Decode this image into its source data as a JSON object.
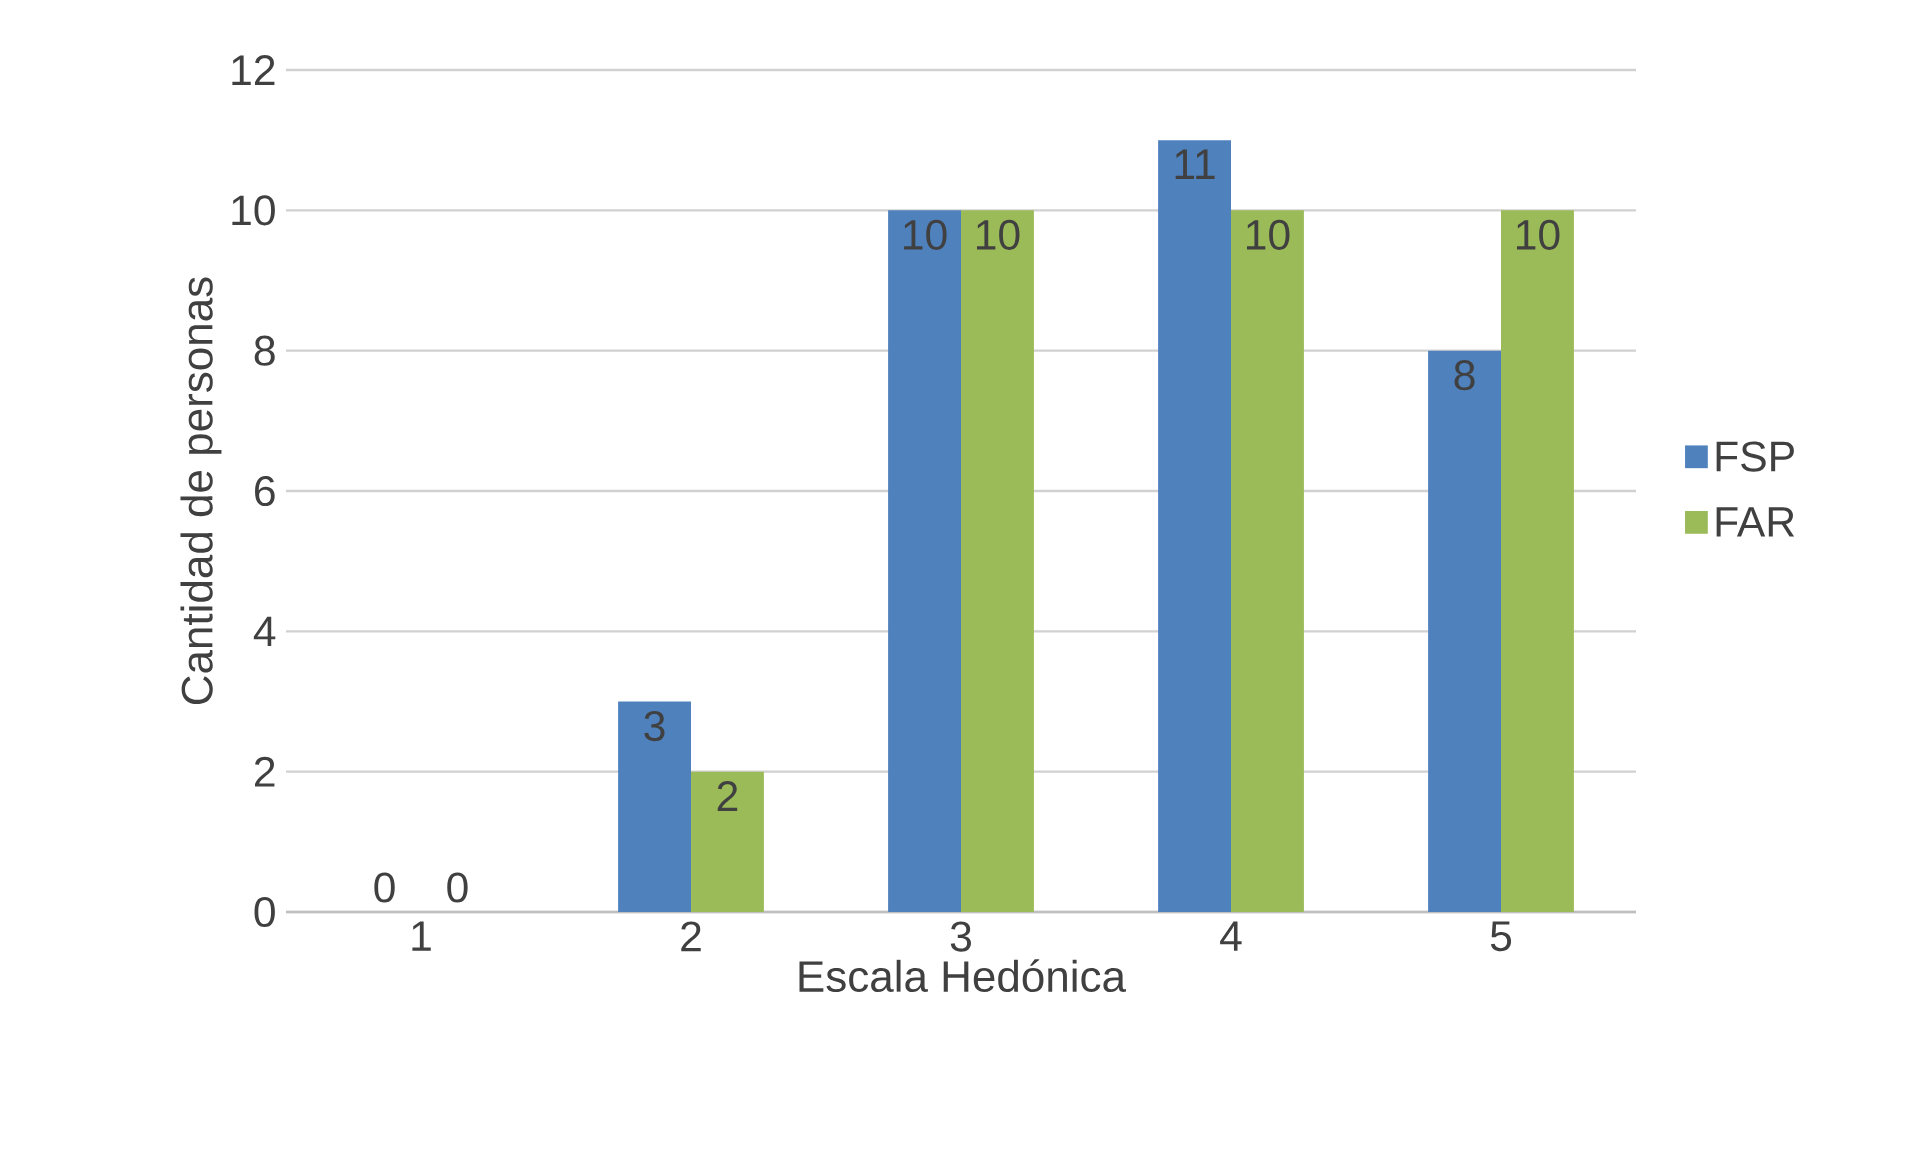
{
  "chart_data": {
    "type": "bar",
    "xlabel": "Escala Hedónica",
    "ylabel": "Cantidad de personas",
    "categories": [
      "1",
      "2",
      "3",
      "4",
      "5"
    ],
    "series": [
      {
        "name": "FSP",
        "color": "#4f81bd",
        "values": [
          0,
          3,
          10,
          11,
          8
        ]
      },
      {
        "name": "FAR",
        "color": "#9bbb59",
        "values": [
          0,
          2,
          10,
          10,
          10
        ]
      }
    ],
    "ylim": [
      0,
      12
    ],
    "yticks": [
      0,
      2,
      4,
      6,
      8,
      10,
      12
    ],
    "grid": "y",
    "legend": "right",
    "data_labels": true
  }
}
